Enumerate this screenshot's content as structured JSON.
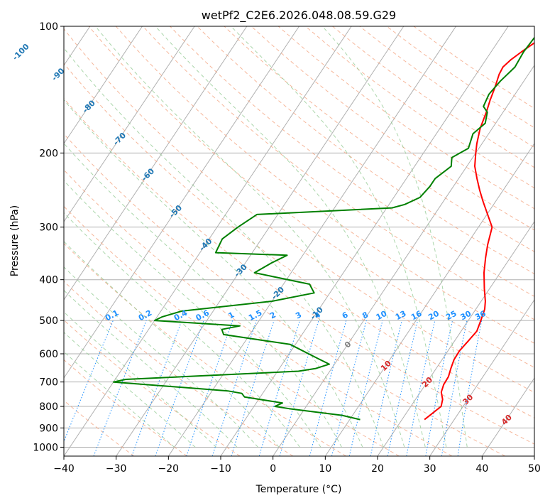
{
  "chart_data": {
    "type": "line",
    "title": "wetPf2_C2E6.2026.048.08.59.G29",
    "xlabel": "Temperature (°C)",
    "ylabel": "Pressure (hPa)",
    "xlim": [
      -40,
      50
    ],
    "ylim": [
      1050,
      100
    ],
    "xticks": [
      -40,
      -30,
      -20,
      -10,
      0,
      10,
      20,
      30,
      40,
      50
    ],
    "yticks": [
      100,
      200,
      300,
      400,
      500,
      600,
      700,
      800,
      900,
      1000
    ],
    "series": [
      {
        "name": "Temperature",
        "color": "#ff0000",
        "points": [
          [
            24.3,
            860
          ],
          [
            24.8,
            840
          ],
          [
            25.8,
            800
          ],
          [
            25.2,
            770
          ],
          [
            24,
            740
          ],
          [
            23.5,
            710
          ],
          [
            23.4,
            680
          ],
          [
            22.8,
            650
          ],
          [
            22.3,
            620
          ],
          [
            22.2,
            590
          ],
          [
            22.6,
            560
          ],
          [
            23,
            530
          ],
          [
            22.4,
            500
          ],
          [
            21.7,
            470
          ],
          [
            20.8,
            450
          ],
          [
            19,
            420
          ],
          [
            16.9,
            385
          ],
          [
            15.3,
            355
          ],
          [
            14,
            330
          ],
          [
            12.6,
            300
          ],
          [
            9.5,
            275
          ],
          [
            7.5,
            260
          ],
          [
            5.5,
            245
          ],
          [
            3.5,
            230
          ],
          [
            1.5,
            215
          ],
          [
            0,
            200
          ],
          [
            -1,
            190
          ],
          [
            -2.3,
            175
          ],
          [
            -3.2,
            160
          ],
          [
            -4,
            150
          ],
          [
            -4.7,
            140
          ],
          [
            -5.6,
            130
          ],
          [
            -5.8,
            125
          ],
          [
            -5.2,
            120
          ],
          [
            -4.2,
            115
          ],
          [
            -3,
            110
          ],
          [
            -1.5,
            105
          ],
          [
            -0.6,
            100
          ]
        ]
      },
      {
        "name": "Dewpoint",
        "color": "#008000",
        "points": [
          [
            12,
            860
          ],
          [
            8,
            840
          ],
          [
            -3,
            810
          ],
          [
            -6,
            800
          ],
          [
            -5,
            785
          ],
          [
            -13,
            760
          ],
          [
            -14,
            745
          ],
          [
            -17,
            735
          ],
          [
            -40,
            700
          ],
          [
            -38,
            690
          ],
          [
            -6,
            660
          ],
          [
            -3,
            650
          ],
          [
            -1,
            635
          ],
          [
            -4,
            615
          ],
          [
            -11,
            570
          ],
          [
            -25,
            540
          ],
          [
            -26,
            525
          ],
          [
            -23,
            515
          ],
          [
            -40,
            500
          ],
          [
            -39,
            490
          ],
          [
            -36,
            475
          ],
          [
            -20,
            450
          ],
          [
            -13,
            430
          ],
          [
            -15,
            410
          ],
          [
            -27,
            385
          ],
          [
            -25,
            365
          ],
          [
            -23,
            350
          ],
          [
            -37,
            345
          ],
          [
            -37.5,
            320
          ],
          [
            -36,
            300
          ],
          [
            -34,
            280
          ],
          [
            -9,
            270
          ],
          [
            -7,
            265
          ],
          [
            -5,
            255
          ],
          [
            -4.5,
            240
          ],
          [
            -4.5,
            230
          ],
          [
            -3,
            215
          ],
          [
            -4,
            205
          ],
          [
            -2,
            195
          ],
          [
            -3,
            180
          ],
          [
            -2,
            170
          ],
          [
            -3,
            160
          ],
          [
            -4.5,
            155
          ],
          [
            -5,
            145
          ],
          [
            -4.5,
            135
          ],
          [
            -3.5,
            125
          ],
          [
            -3.8,
            115
          ],
          [
            -3.5,
            105
          ],
          [
            -3.8,
            100
          ]
        ]
      }
    ],
    "mixing_ratio_labels": [
      "0.1",
      "0.2",
      "0.4",
      "0.6",
      "1",
      "1.5",
      "2",
      "3",
      "4",
      "6",
      "8",
      "10",
      "13",
      "16",
      "20",
      "25",
      "30",
      "36"
    ],
    "mixing_ratio_values": [
      0.1,
      0.2,
      0.4,
      0.6,
      1,
      1.5,
      2,
      3,
      4,
      6,
      8,
      10,
      13,
      16,
      20,
      25,
      30,
      36
    ],
    "dry_adiabat_labels": [
      "-100",
      "-90",
      "-80",
      "-70",
      "-60",
      "-50",
      "-40",
      "-30",
      "-20",
      "-10",
      "0",
      "10",
      "20",
      "30",
      "40"
    ],
    "dry_adiabat_values": [
      -100,
      -90,
      -80,
      -70,
      -60,
      -50,
      -40,
      -30,
      -20,
      -10,
      0,
      10,
      20,
      30,
      40
    ]
  }
}
